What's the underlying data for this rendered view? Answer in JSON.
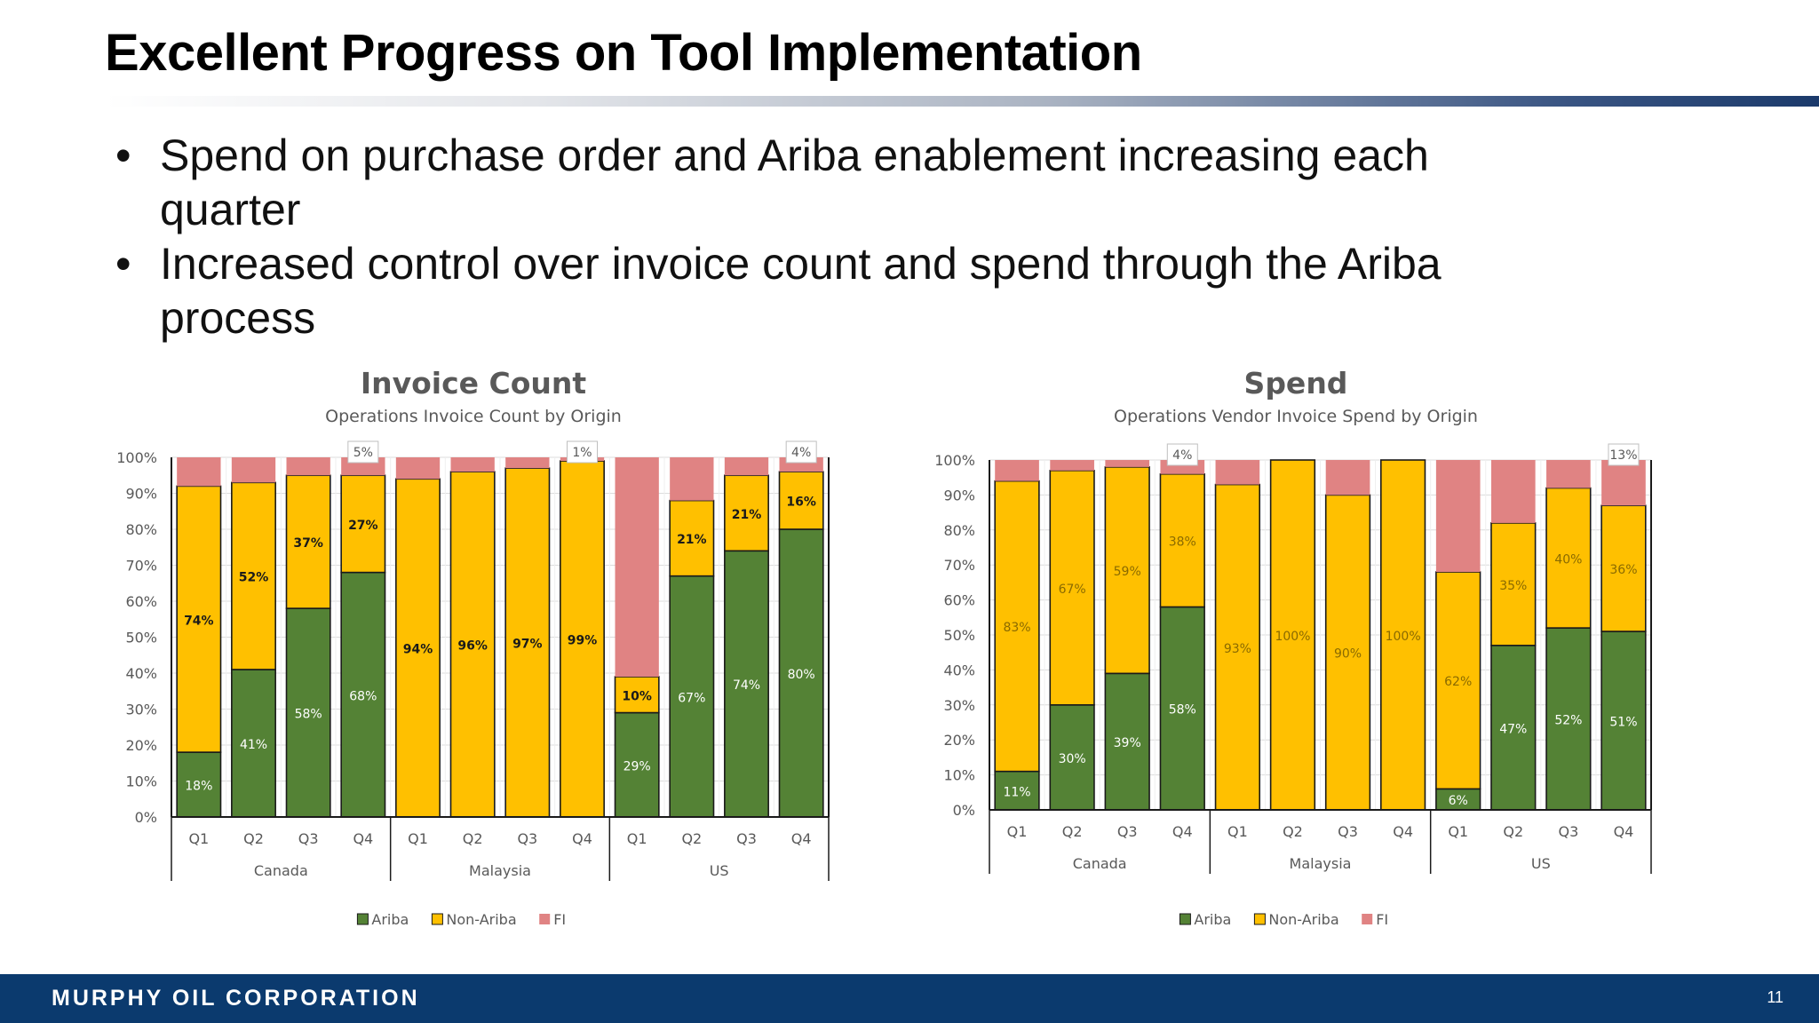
{
  "slide": {
    "title": "Excellent Progress on Tool Implementation",
    "bullets": [
      "Spend on purchase order and Ariba enablement increasing each quarter",
      "Increased control over invoice count and spend through the Ariba process"
    ]
  },
  "footer": {
    "company": "MURPHY OIL CORPORATION",
    "page_number": "11"
  },
  "colors": {
    "ariba": "#548235",
    "non_ariba": "#ffc000",
    "fi": "#e08383",
    "footer_bg": "#0b3a6e"
  },
  "chart_data": [
    {
      "type": "bar",
      "stacked": true,
      "title": "Invoice Count",
      "subtitle": "Operations Invoice Count by Origin",
      "categories": [
        "Q1",
        "Q2",
        "Q3",
        "Q4",
        "Q1",
        "Q2",
        "Q3",
        "Q4",
        "Q1",
        "Q2",
        "Q3",
        "Q4"
      ],
      "groups": [
        {
          "name": "Canada",
          "categories": [
            "Q1",
            "Q2",
            "Q3",
            "Q4"
          ]
        },
        {
          "name": "Malaysia",
          "categories": [
            "Q1",
            "Q2",
            "Q3",
            "Q4"
          ]
        },
        {
          "name": "US",
          "categories": [
            "Q1",
            "Q2",
            "Q3",
            "Q4"
          ]
        }
      ],
      "y_ticks": [
        "0%",
        "10%",
        "20%",
        "30%",
        "40%",
        "50%",
        "60%",
        "70%",
        "80%",
        "90%",
        "100%"
      ],
      "ylim": [
        0,
        100
      ],
      "legend_position": "bottom",
      "series": [
        {
          "name": "Ariba",
          "values": [
            18,
            41,
            58,
            68,
            0,
            0,
            0,
            0,
            29,
            67,
            74,
            80
          ],
          "labels": [
            "18%",
            "41%",
            "58%",
            "68%",
            "",
            "",
            "",
            "",
            "29%",
            "67%",
            "74%",
            "80%"
          ]
        },
        {
          "name": "Non-Ariba",
          "values": [
            74,
            52,
            37,
            27,
            94,
            96,
            97,
            99,
            10,
            21,
            21,
            16
          ],
          "labels": [
            "74%",
            "52%",
            "37%",
            "27%",
            "94%",
            "96%",
            "97%",
            "99%",
            "10%",
            "21%",
            "21%",
            "16%"
          ]
        },
        {
          "name": "FI",
          "values": [
            8,
            7,
            5,
            5,
            6,
            4,
            3,
            1,
            61,
            12,
            5,
            4
          ],
          "labels": [
            "",
            "",
            "",
            "5%",
            "",
            "",
            "",
            "1%",
            "",
            "",
            "",
            "4%"
          ]
        }
      ]
    },
    {
      "type": "bar",
      "stacked": true,
      "title": "Spend",
      "subtitle": "Operations Vendor Invoice Spend by Origin",
      "categories": [
        "Q1",
        "Q2",
        "Q3",
        "Q4",
        "Q1",
        "Q2",
        "Q3",
        "Q4",
        "Q1",
        "Q2",
        "Q3",
        "Q4"
      ],
      "groups": [
        {
          "name": "Canada",
          "categories": [
            "Q1",
            "Q2",
            "Q3",
            "Q4"
          ]
        },
        {
          "name": "Malaysia",
          "categories": [
            "Q1",
            "Q2",
            "Q3",
            "Q4"
          ]
        },
        {
          "name": "US",
          "categories": [
            "Q1",
            "Q2",
            "Q3",
            "Q4"
          ]
        }
      ],
      "y_ticks": [
        "0%",
        "10%",
        "20%",
        "30%",
        "40%",
        "50%",
        "60%",
        "70%",
        "80%",
        "90%",
        "100%"
      ],
      "ylim": [
        0,
        100
      ],
      "legend_position": "bottom",
      "series": [
        {
          "name": "Ariba",
          "values": [
            11,
            30,
            39,
            58,
            0,
            0,
            0,
            0,
            6,
            47,
            52,
            51
          ],
          "labels": [
            "11%",
            "30%",
            "39%",
            "58%",
            "",
            "",
            "",
            "",
            "6%",
            "47%",
            "52%",
            "51%"
          ]
        },
        {
          "name": "Non-Ariba",
          "values": [
            83,
            67,
            59,
            38,
            93,
            100,
            90,
            100,
            62,
            35,
            40,
            36
          ],
          "labels": [
            "83%",
            "67%",
            "59%",
            "38%",
            "93%",
            "100%",
            "90%",
            "100%",
            "62%",
            "35%",
            "40%",
            "36%"
          ]
        },
        {
          "name": "FI",
          "values": [
            6,
            3,
            2,
            4,
            7,
            0,
            10,
            0,
            32,
            18,
            8,
            13
          ],
          "labels": [
            "",
            "",
            "",
            "4%",
            "",
            "",
            "",
            "",
            "",
            "",
            "",
            "13%"
          ]
        }
      ]
    }
  ]
}
